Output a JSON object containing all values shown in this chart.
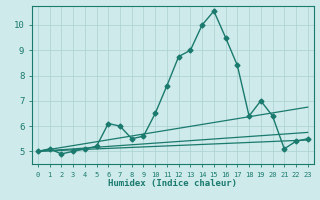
{
  "xlabel": "Humidex (Indice chaleur)",
  "background_color": "#ceeaea",
  "grid_color": "#afd4d4",
  "line_color": "#1a7a6e",
  "xlim": [
    -0.5,
    23.5
  ],
  "ylim": [
    4.5,
    10.75
  ],
  "xticks": [
    0,
    1,
    2,
    3,
    4,
    5,
    6,
    7,
    8,
    9,
    10,
    11,
    12,
    13,
    14,
    15,
    16,
    17,
    18,
    19,
    20,
    21,
    22,
    23
  ],
  "yticks": [
    5,
    6,
    7,
    8,
    9,
    10
  ],
  "lines": [
    {
      "x": [
        0,
        1,
        2,
        3,
        4,
        5,
        6,
        7,
        8,
        9,
        10,
        11,
        12,
        13,
        14,
        15,
        16,
        17,
        18,
        19,
        20,
        21,
        22,
        23
      ],
      "y": [
        5.0,
        5.1,
        4.9,
        5.0,
        5.1,
        5.2,
        6.1,
        6.0,
        5.5,
        5.6,
        6.5,
        7.6,
        8.75,
        9.0,
        10.0,
        10.55,
        9.5,
        8.4,
        6.4,
        7.0,
        6.4,
        5.1,
        5.4,
        5.5
      ],
      "marker": "D",
      "markersize": 2.5,
      "linewidth": 1.0
    },
    {
      "x": [
        0,
        23
      ],
      "y": [
        5.0,
        6.75
      ],
      "marker": null,
      "markersize": 0,
      "linewidth": 0.9
    },
    {
      "x": [
        0,
        23
      ],
      "y": [
        5.0,
        5.75
      ],
      "marker": null,
      "markersize": 0,
      "linewidth": 0.9
    },
    {
      "x": [
        0,
        23
      ],
      "y": [
        5.0,
        5.45
      ],
      "marker": null,
      "markersize": 0,
      "linewidth": 0.9
    }
  ]
}
